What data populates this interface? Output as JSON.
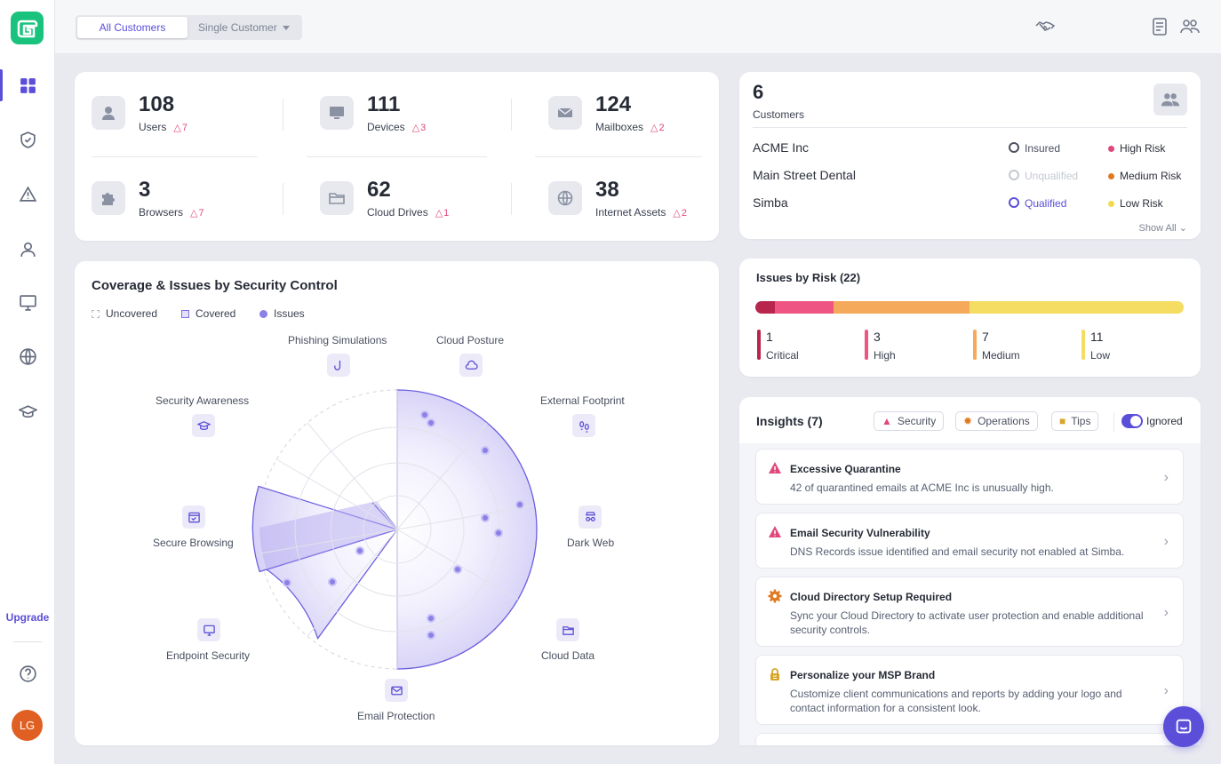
{
  "sidebar": {
    "upgrade_label": "Upgrade",
    "avatar_initials": "LG"
  },
  "topbar": {
    "tabs": [
      {
        "label": "All Customers",
        "selected": true
      },
      {
        "label": "Single Customer",
        "selected": false
      }
    ]
  },
  "stats": [
    {
      "value": "108",
      "label": "Users",
      "warnings": "7",
      "icon": "user-icon"
    },
    {
      "value": "111",
      "label": "Devices",
      "warnings": "3",
      "icon": "monitor-icon"
    },
    {
      "value": "124",
      "label": "Mailboxes",
      "warnings": "2",
      "icon": "mail-icon"
    },
    {
      "value": "3",
      "label": "Browsers",
      "warnings": "7",
      "icon": "puzzle-icon"
    },
    {
      "value": "62",
      "label": "Cloud Drives",
      "warnings": "1",
      "icon": "folder-icon"
    },
    {
      "value": "38",
      "label": "Internet Assets",
      "warnings": "2",
      "icon": "globe-icon"
    }
  ],
  "customers": {
    "count": "6",
    "label": "Customers",
    "rows": [
      {
        "name": "ACME Inc",
        "insurance": "Insured",
        "insurance_color": "#4a5060",
        "risk": "High Risk",
        "risk_color": "#e0487a"
      },
      {
        "name": "Main Street Dental",
        "insurance": "Unqualified",
        "insurance_color": "#c4c8d2",
        "risk": "Medium Risk",
        "risk_color": "#e07a22"
      },
      {
        "name": "Simba",
        "insurance": "Qualified",
        "insurance_color": "#5b4fd9",
        "risk": "Low Risk",
        "risk_color": "#f2d94e"
      }
    ],
    "show_all": "Show All"
  },
  "issues": {
    "title": "Issues by Risk (22)",
    "levels": [
      {
        "count": "1",
        "label": "Critical",
        "color": "#b8254d"
      },
      {
        "count": "3",
        "label": "High",
        "color": "#ee5583"
      },
      {
        "count": "7",
        "label": "Medium",
        "color": "#f5a95a"
      },
      {
        "count": "11",
        "label": "Low",
        "color": "#f5dc62"
      }
    ]
  },
  "coverage": {
    "title": "Coverage & Issues by Security Control",
    "legend": {
      "uncovered": "Uncovered",
      "covered": "Covered",
      "issues": "Issues"
    },
    "controls": [
      {
        "label": "Phishing Simulations",
        "icon": "hook-icon"
      },
      {
        "label": "Cloud Posture",
        "icon": "cloud-icon"
      },
      {
        "label": "External Footprint",
        "icon": "footprint-icon"
      },
      {
        "label": "Dark Web",
        "icon": "spy-icon"
      },
      {
        "label": "Cloud Data",
        "icon": "folder-icon"
      },
      {
        "label": "Email Protection",
        "icon": "mail-icon"
      },
      {
        "label": "Endpoint Security",
        "icon": "monitor-icon"
      },
      {
        "label": "Secure Browsing",
        "icon": "browser-icon"
      },
      {
        "label": "Security Awareness",
        "icon": "graduation-icon"
      }
    ]
  },
  "insights": {
    "title": "Insights (7)",
    "filters": {
      "security": "Security",
      "operations": "Operations",
      "tips": "Tips",
      "ignored": "Ignored"
    },
    "items": [
      {
        "title": "Excessive Quarantine",
        "desc": "42 of quarantined emails at ACME Inc is unusually high.",
        "icon": "warning-icon"
      },
      {
        "title": "Email Security Vulnerability",
        "desc": "DNS Records issue identified and email security not enabled at Simba.",
        "icon": "warning-icon"
      },
      {
        "title": "Cloud Directory Setup Required",
        "desc": "Sync your Cloud Directory to activate user protection and enable additional security controls.",
        "icon": "gear-icon"
      },
      {
        "title": "Personalize your MSP Brand",
        "desc": "Customize client communications and reports by adding your logo and contact information for a consistent look.",
        "icon": "lock-icon"
      }
    ]
  }
}
